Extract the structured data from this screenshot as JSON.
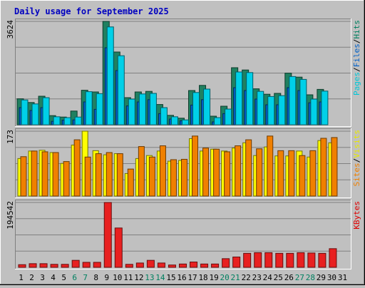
{
  "chart_data": [
    {
      "type": "bar",
      "title": "Daily usage for September 2025",
      "y_max_label": "3624",
      "legend": [
        {
          "text": "Pages",
          "color": "#00c8d8"
        },
        {
          "text": "/",
          "color": "#000000"
        },
        {
          "text": "Files",
          "color": "#0060c8"
        },
        {
          "text": "/",
          "color": "#000000"
        },
        {
          "text": "Hits",
          "color": "#008060"
        }
      ],
      "ylim": [
        0,
        3624
      ],
      "categories": [
        "1",
        "2",
        "3",
        "4",
        "5",
        "6",
        "7",
        "8",
        "9",
        "10",
        "11",
        "12",
        "13",
        "14",
        "15",
        "16",
        "17",
        "18",
        "19",
        "20",
        "21",
        "22",
        "23",
        "24",
        "25",
        "26",
        "27",
        "28",
        "29",
        "30",
        "31"
      ],
      "series": [
        {
          "name": "Hits",
          "color": "#208060",
          "values": [
            910,
            780,
            1000,
            320,
            270,
            480,
            1210,
            1150,
            3624,
            2550,
            950,
            1150,
            1170,
            710,
            330,
            230,
            1200,
            1380,
            300,
            650,
            2000,
            1920,
            1260,
            1070,
            1100,
            1810,
            1670,
            1050,
            1240,
            0,
            0
          ]
        },
        {
          "name": "Files",
          "color": "#0060c8",
          "values": [
            600,
            500,
            600,
            120,
            160,
            170,
            800,
            540,
            2700,
            1900,
            660,
            800,
            880,
            390,
            200,
            140,
            690,
            880,
            100,
            390,
            1300,
            1200,
            900,
            700,
            700,
            1300,
            1200,
            770,
            800,
            0,
            0
          ]
        },
        {
          "name": "Pages",
          "color": "#00d0e8",
          "values": [
            870,
            730,
            950,
            280,
            250,
            270,
            1160,
            1090,
            3430,
            2420,
            900,
            1080,
            1100,
            600,
            280,
            170,
            1130,
            1250,
            250,
            550,
            1850,
            1830,
            1170,
            990,
            1020,
            1690,
            1590,
            900,
            1180,
            0,
            0
          ]
        }
      ]
    },
    {
      "type": "bar",
      "y_max_label": "173",
      "legend": [
        {
          "text": "Sites",
          "color": "#f08000"
        },
        {
          "text": "/",
          "color": "#000000"
        },
        {
          "text": "Visits",
          "color": "#e8e800"
        }
      ],
      "ylim": [
        0,
        173
      ],
      "categories": [
        "1",
        "2",
        "3",
        "4",
        "5",
        "6",
        "7",
        "8",
        "9",
        "10",
        "11",
        "12",
        "13",
        "14",
        "15",
        "16",
        "17",
        "18",
        "19",
        "20",
        "21",
        "22",
        "23",
        "24",
        "25",
        "26",
        "27",
        "28",
        "29",
        "30",
        "31"
      ],
      "series": [
        {
          "name": "Visits",
          "color": "#ffff00",
          "values": [
            100,
            120,
            122,
            116,
            87,
            136,
            173,
            121,
            110,
            113,
            60,
            100,
            108,
            120,
            93,
            95,
            153,
            120,
            125,
            120,
            128,
            142,
            108,
            131,
            107,
            107,
            120,
            104,
            148,
            142,
            0
          ]
        },
        {
          "name": "Sites",
          "color": "#f08000",
          "values": [
            105,
            120,
            118,
            116,
            92,
            150,
            104,
            113,
            116,
            113,
            72,
            132,
            104,
            134,
            97,
            98,
            160,
            128,
            125,
            118,
            134,
            150,
            126,
            160,
            121,
            121,
            108,
            121,
            154,
            156,
            0
          ]
        }
      ]
    },
    {
      "type": "bar",
      "y_max_label": "194542",
      "legend": [
        {
          "text": "KBytes",
          "color": "#e00000"
        }
      ],
      "ylim": [
        0,
        194542
      ],
      "categories": [
        "1",
        "2",
        "3",
        "4",
        "5",
        "6",
        "7",
        "8",
        "9",
        "10",
        "11",
        "12",
        "13",
        "14",
        "15",
        "16",
        "17",
        "18",
        "19",
        "20",
        "21",
        "22",
        "23",
        "24",
        "25",
        "26",
        "27",
        "28",
        "29",
        "30",
        "31"
      ],
      "series": [
        {
          "name": "KBytes",
          "color": "#e82020",
          "values": [
            8000,
            11000,
            11000,
            9000,
            9000,
            21000,
            15000,
            15000,
            194542,
            118000,
            9000,
            13000,
            21000,
            13000,
            7000,
            10000,
            16000,
            10000,
            10000,
            26000,
            31000,
            42000,
            44000,
            44000,
            42000,
            42000,
            44000,
            43000,
            42000,
            56000,
            0
          ]
        }
      ]
    }
  ],
  "x_labels": [
    {
      "text": "1",
      "color": "#000000"
    },
    {
      "text": "2",
      "color": "#000000"
    },
    {
      "text": "3",
      "color": "#000000"
    },
    {
      "text": "4",
      "color": "#000000"
    },
    {
      "text": "5",
      "color": "#000000"
    },
    {
      "text": "6",
      "color": "#008060"
    },
    {
      "text": "7",
      "color": "#008060"
    },
    {
      "text": "8",
      "color": "#000000"
    },
    {
      "text": "9",
      "color": "#000000"
    },
    {
      "text": "10",
      "color": "#000000"
    },
    {
      "text": "11",
      "color": "#000000"
    },
    {
      "text": "12",
      "color": "#000000"
    },
    {
      "text": "13",
      "color": "#008060"
    },
    {
      "text": "14",
      "color": "#008060"
    },
    {
      "text": "15",
      "color": "#000000"
    },
    {
      "text": "16",
      "color": "#000000"
    },
    {
      "text": "17",
      "color": "#000000"
    },
    {
      "text": "18",
      "color": "#000000"
    },
    {
      "text": "19",
      "color": "#000000"
    },
    {
      "text": "20",
      "color": "#008060"
    },
    {
      "text": "21",
      "color": "#008060"
    },
    {
      "text": "22",
      "color": "#000000"
    },
    {
      "text": "23",
      "color": "#000000"
    },
    {
      "text": "24",
      "color": "#000000"
    },
    {
      "text": "25",
      "color": "#000000"
    },
    {
      "text": "26",
      "color": "#000000"
    },
    {
      "text": "27",
      "color": "#008060"
    },
    {
      "text": "28",
      "color": "#008060"
    },
    {
      "text": "29",
      "color": "#000000"
    },
    {
      "text": "30",
      "color": "#000000"
    },
    {
      "text": "31",
      "color": "#000000"
    }
  ],
  "colors": {
    "background": "#c0c0c0",
    "panel": "#c0c0c0",
    "title": "#0000c0",
    "grid": "#808080"
  }
}
